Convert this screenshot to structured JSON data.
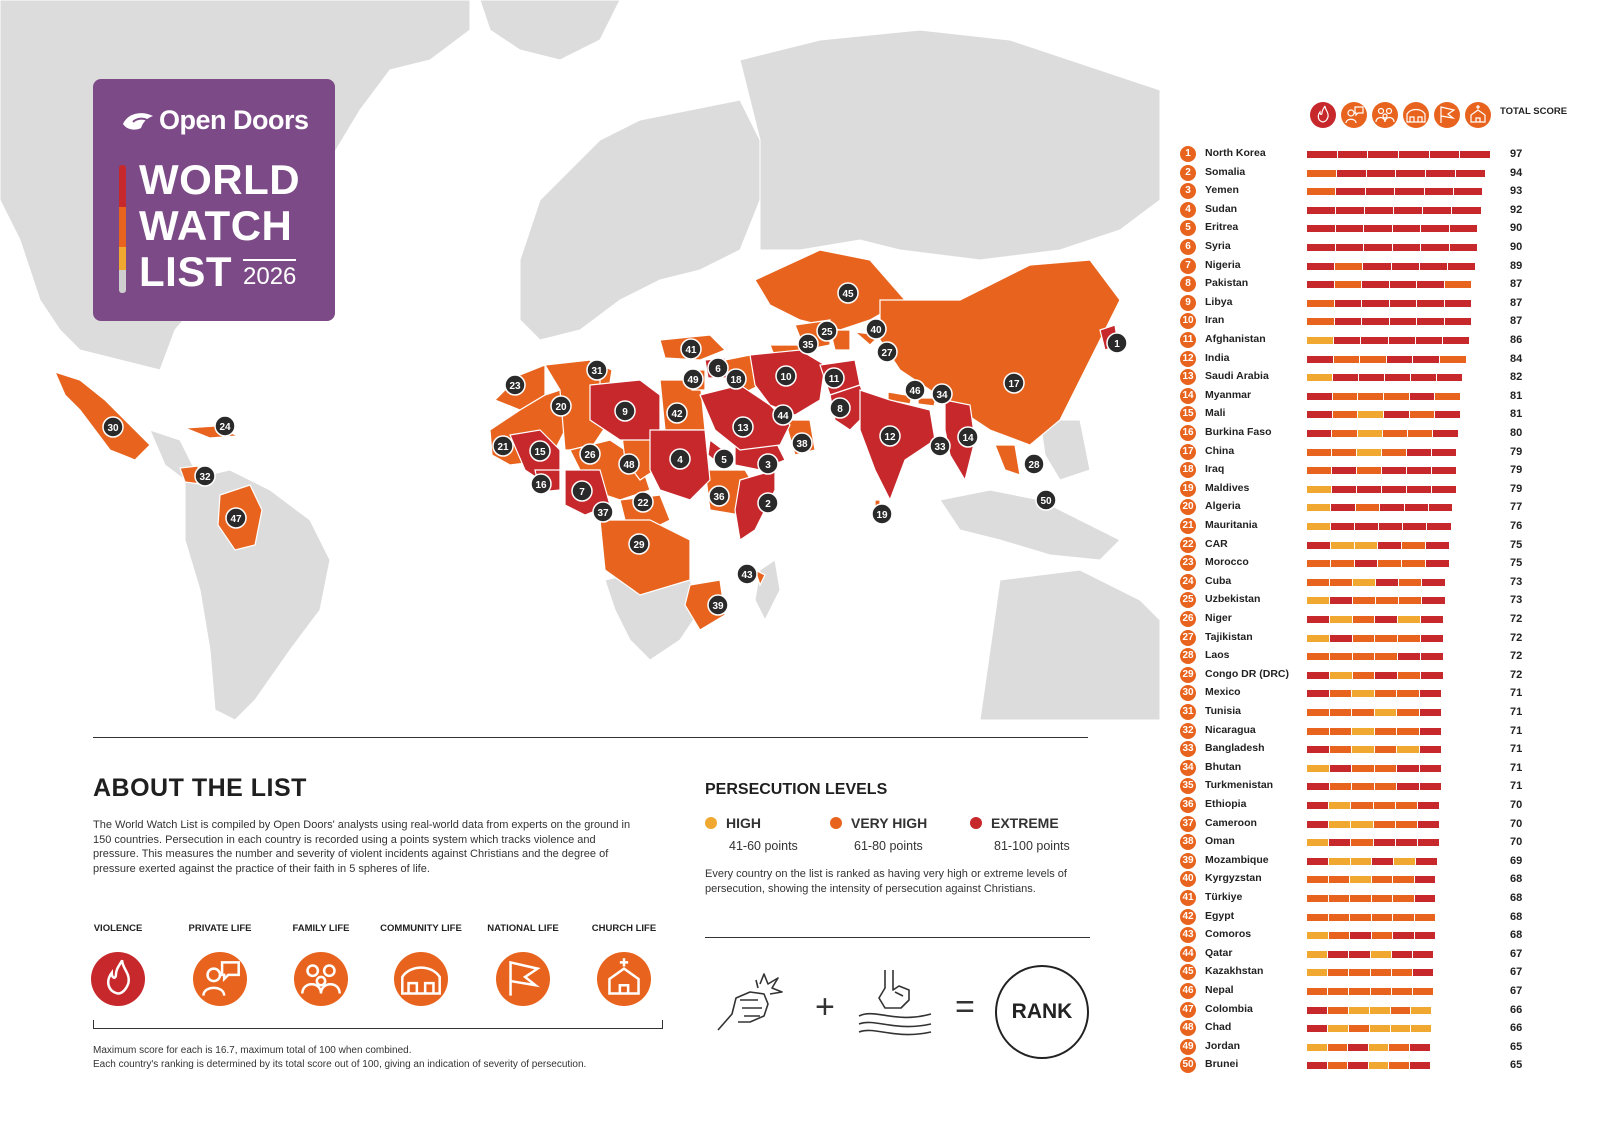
{
  "brand": {
    "org": "Open Doors",
    "title_lines": [
      "WORLD",
      "WATCH",
      "LIST"
    ],
    "year": "2026"
  },
  "colors": {
    "high": "#f0a830",
    "very_high": "#e8641e",
    "extreme": "#c6282c",
    "land_other": "#dcdcdc",
    "brand_purple": "#7c4a86"
  },
  "about": {
    "title": "ABOUT THE LIST",
    "text": "The World Watch List is compiled by Open Doors' analysts using real-world data from experts on the ground in 150 countries. Persecution in each country is recorded using a points system which tracks violence and pressure. This measures the number and severity of violent incidents against Christians and the degree of pressure exerted against the practice of their faith in 5 spheres of life.",
    "spheres": [
      {
        "label": "VIOLENCE",
        "icon": "fire-hand-icon",
        "color": "#c6282c"
      },
      {
        "label": "PRIVATE LIFE",
        "icon": "person-speech-icon",
        "color": "#e8641e"
      },
      {
        "label": "FAMILY LIFE",
        "icon": "family-icon",
        "color": "#e8641e"
      },
      {
        "label": "COMMUNITY LIFE",
        "icon": "houses-icon",
        "color": "#e8641e"
      },
      {
        "label": "NATIONAL LIFE",
        "icon": "flag-icon",
        "color": "#e8641e"
      },
      {
        "label": "CHURCH LIFE",
        "icon": "church-icon",
        "color": "#e8641e"
      }
    ],
    "note_1": "Maximum score for each is 16.7, maximum total of 100 when combined.",
    "note_2": "Each country's ranking is determined by its total score out of 100, giving an indication of severity of persecution."
  },
  "levels": {
    "title": "PERSECUTION LEVELS",
    "items": [
      {
        "name": "HIGH",
        "points": "41-60 points",
        "color": "#f0a830"
      },
      {
        "name": "VERY HIGH",
        "points": "61-80 points",
        "color": "#e8641e"
      },
      {
        "name": "EXTREME",
        "points": "81-100 points",
        "color": "#c6282c"
      }
    ],
    "text": "Every country on the list is ranked as having very high or extreme levels of persecution, showing the intensity of persecution against Christians.",
    "equation_plus": "+",
    "equation_equals": "=",
    "rank_label": "RANK"
  },
  "list_header": {
    "total_score": "TOTAL SCORE",
    "icons": [
      "fire-hand-icon",
      "person-speech-icon",
      "family-icon",
      "houses-icon",
      "flag-icon",
      "church-icon"
    ]
  },
  "countries": [
    {
      "rank": "1",
      "name": "North Korea",
      "score": "97",
      "segs": "EEEEEE"
    },
    {
      "rank": "2",
      "name": "Somalia",
      "score": "94",
      "segs": "VEEEEE"
    },
    {
      "rank": "3",
      "name": "Yemen",
      "score": "93",
      "segs": "VEEEEE"
    },
    {
      "rank": "4",
      "name": "Sudan",
      "score": "92",
      "segs": "EEEEEE"
    },
    {
      "rank": "5",
      "name": "Eritrea",
      "score": "90",
      "segs": "EEEEEE"
    },
    {
      "rank": "6",
      "name": "Syria",
      "score": "90",
      "segs": "EEEEEE"
    },
    {
      "rank": "7",
      "name": "Nigeria",
      "score": "89",
      "segs": "EVEEEE"
    },
    {
      "rank": "8",
      "name": "Pakistan",
      "score": "87",
      "segs": "EVEEEV"
    },
    {
      "rank": "9",
      "name": "Libya",
      "score": "87",
      "segs": "VEEEEE"
    },
    {
      "rank": "10",
      "name": "Iran",
      "score": "87",
      "segs": "VEEEEE"
    },
    {
      "rank": "11",
      "name": "Afghanistan",
      "score": "86",
      "segs": "HEEEEE"
    },
    {
      "rank": "12",
      "name": "India",
      "score": "84",
      "segs": "EVVEEV"
    },
    {
      "rank": "13",
      "name": "Saudi Arabia",
      "score": "82",
      "segs": "HEEEEE"
    },
    {
      "rank": "14",
      "name": "Myanmar",
      "score": "81",
      "segs": "EVVVEV"
    },
    {
      "rank": "15",
      "name": "Mali",
      "score": "81",
      "segs": "EVHEVE"
    },
    {
      "rank": "16",
      "name": "Burkina Faso",
      "score": "80",
      "segs": "EVHVVE"
    },
    {
      "rank": "17",
      "name": "China",
      "score": "79",
      "segs": "VVHVEE"
    },
    {
      "rank": "18",
      "name": "Iraq",
      "score": "79",
      "segs": "VEVEEE"
    },
    {
      "rank": "19",
      "name": "Maldives",
      "score": "79",
      "segs": "HEEEEE"
    },
    {
      "rank": "20",
      "name": "Algeria",
      "score": "77",
      "segs": "HEVEEE"
    },
    {
      "rank": "21",
      "name": "Mauritania",
      "score": "76",
      "segs": "HEEEEE"
    },
    {
      "rank": "22",
      "name": "CAR",
      "score": "75",
      "segs": "EHHEVE"
    },
    {
      "rank": "23",
      "name": "Morocco",
      "score": "75",
      "segs": "VVEVVE"
    },
    {
      "rank": "24",
      "name": "Cuba",
      "score": "73",
      "segs": "VVHEVE"
    },
    {
      "rank": "25",
      "name": "Uzbekistan",
      "score": "73",
      "segs": "HEVVVE"
    },
    {
      "rank": "26",
      "name": "Niger",
      "score": "72",
      "segs": "EHVEHE"
    },
    {
      "rank": "27",
      "name": "Tajikistan",
      "score": "72",
      "segs": "HEVVVE"
    },
    {
      "rank": "28",
      "name": "Laos",
      "score": "72",
      "segs": "VVVVEE"
    },
    {
      "rank": "29",
      "name": "Congo DR (DRC)",
      "score": "72",
      "segs": "EHVEVE"
    },
    {
      "rank": "30",
      "name": "Mexico",
      "score": "71",
      "segs": "EVHVVE"
    },
    {
      "rank": "31",
      "name": "Tunisia",
      "score": "71",
      "segs": "VVVHVE"
    },
    {
      "rank": "32",
      "name": "Nicaragua",
      "score": "71",
      "segs": "VVHVVE"
    },
    {
      "rank": "33",
      "name": "Bangladesh",
      "score": "71",
      "segs": "EVHVHE"
    },
    {
      "rank": "34",
      "name": "Bhutan",
      "score": "71",
      "segs": "HEVVEE"
    },
    {
      "rank": "35",
      "name": "Turkmenistan",
      "score": "71",
      "segs": "EVVVEE"
    },
    {
      "rank": "36",
      "name": "Ethiopia",
      "score": "70",
      "segs": "EHVVVE"
    },
    {
      "rank": "37",
      "name": "Cameroon",
      "score": "70",
      "segs": "EHHVVE"
    },
    {
      "rank": "38",
      "name": "Oman",
      "score": "70",
      "segs": "HEVEEE"
    },
    {
      "rank": "39",
      "name": "Mozambique",
      "score": "69",
      "segs": "EHHEHE"
    },
    {
      "rank": "40",
      "name": "Kyrgyzstan",
      "score": "68",
      "segs": "VVHVVE"
    },
    {
      "rank": "41",
      "name": "Türkiye",
      "score": "68",
      "segs": "VVVVVE"
    },
    {
      "rank": "42",
      "name": "Egypt",
      "score": "68",
      "segs": "VVVVVV"
    },
    {
      "rank": "43",
      "name": "Comoros",
      "score": "68",
      "segs": "HVEVEE"
    },
    {
      "rank": "44",
      "name": "Qatar",
      "score": "67",
      "segs": "HEEHEE"
    },
    {
      "rank": "45",
      "name": "Kazakhstan",
      "score": "67",
      "segs": "HVVVVE"
    },
    {
      "rank": "46",
      "name": "Nepal",
      "score": "67",
      "segs": "VVVVVV"
    },
    {
      "rank": "47",
      "name": "Colombia",
      "score": "66",
      "segs": "EVHHVH"
    },
    {
      "rank": "48",
      "name": "Chad",
      "score": "66",
      "segs": "EHVHHH"
    },
    {
      "rank": "49",
      "name": "Jordan",
      "score": "65",
      "segs": "HVEHVE"
    },
    {
      "rank": "50",
      "name": "Brunei",
      "score": "65",
      "segs": "EVEHVE"
    }
  ],
  "map_markers": [
    {
      "rank": "1",
      "level": "E"
    },
    {
      "rank": "2",
      "level": "E"
    },
    {
      "rank": "3",
      "level": "E"
    },
    {
      "rank": "4",
      "level": "E"
    },
    {
      "rank": "5",
      "level": "E"
    },
    {
      "rank": "6",
      "level": "E"
    },
    {
      "rank": "7",
      "level": "E"
    },
    {
      "rank": "8",
      "level": "E"
    },
    {
      "rank": "9",
      "level": "E"
    },
    {
      "rank": "10",
      "level": "E"
    },
    {
      "rank": "11",
      "level": "E"
    },
    {
      "rank": "12",
      "level": "E"
    },
    {
      "rank": "13",
      "level": "E"
    },
    {
      "rank": "14",
      "level": "E"
    },
    {
      "rank": "15",
      "level": "E"
    },
    {
      "rank": "16",
      "level": "V"
    },
    {
      "rank": "17",
      "level": "V"
    },
    {
      "rank": "18",
      "level": "V"
    },
    {
      "rank": "19",
      "level": "V"
    },
    {
      "rank": "20",
      "level": "V"
    },
    {
      "rank": "21",
      "level": "V"
    },
    {
      "rank": "22",
      "level": "V"
    },
    {
      "rank": "23",
      "level": "V"
    },
    {
      "rank": "24",
      "level": "V"
    },
    {
      "rank": "25",
      "level": "V"
    },
    {
      "rank": "26",
      "level": "V"
    },
    {
      "rank": "27",
      "level": "V"
    },
    {
      "rank": "28",
      "level": "V"
    },
    {
      "rank": "29",
      "level": "V"
    },
    {
      "rank": "30",
      "level": "V"
    },
    {
      "rank": "31",
      "level": "V"
    },
    {
      "rank": "32",
      "level": "V"
    },
    {
      "rank": "33",
      "level": "V"
    },
    {
      "rank": "34",
      "level": "V"
    },
    {
      "rank": "35",
      "level": "V"
    },
    {
      "rank": "36",
      "level": "V"
    },
    {
      "rank": "37",
      "level": "V"
    },
    {
      "rank": "38",
      "level": "V"
    },
    {
      "rank": "39",
      "level": "V"
    },
    {
      "rank": "40",
      "level": "V"
    },
    {
      "rank": "41",
      "level": "V"
    },
    {
      "rank": "42",
      "level": "V"
    },
    {
      "rank": "43",
      "level": "V"
    },
    {
      "rank": "44",
      "level": "V"
    },
    {
      "rank": "45",
      "level": "V"
    },
    {
      "rank": "46",
      "level": "V"
    },
    {
      "rank": "47",
      "level": "V"
    },
    {
      "rank": "48",
      "level": "V"
    },
    {
      "rank": "49",
      "level": "V"
    },
    {
      "rank": "50",
      "level": "V"
    }
  ]
}
